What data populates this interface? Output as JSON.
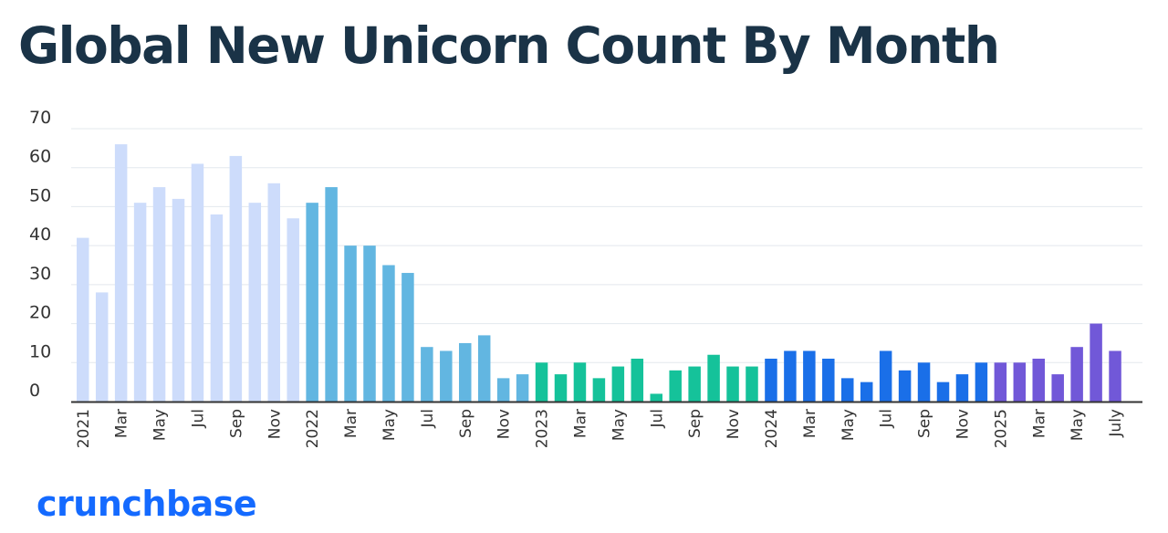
{
  "colors": {
    "title": "#1a3347",
    "logo": "#146aff",
    "grid": "#e3e8ee",
    "axis": "#333333",
    "series": [
      "#cddcfb",
      "#62b6e1",
      "#15c29a",
      "#1a6fe8",
      "#7158d8"
    ]
  },
  "logo_text": "crunchbase",
  "chart_data": {
    "type": "bar",
    "title": "Global New Unicorn Count By Month",
    "xlabel": "",
    "ylabel": "",
    "ylim": [
      0,
      70
    ],
    "y_ticks": [
      0,
      10,
      20,
      30,
      40,
      50,
      60,
      70
    ],
    "grid": true,
    "legend": "none",
    "categories": [
      "Jan 2021",
      "Feb 2021",
      "Mar 2021",
      "Apr 2021",
      "May 2021",
      "Jun 2021",
      "Jul 2021",
      "Aug 2021",
      "Sep 2021",
      "Oct 2021",
      "Nov 2021",
      "Dec 2021",
      "Jan 2022",
      "Feb 2022",
      "Mar 2022",
      "Apr 2022",
      "May 2022",
      "Jun 2022",
      "Jul 2022",
      "Aug 2022",
      "Sep 2022",
      "Oct 2022",
      "Nov 2022",
      "Dec 2022",
      "Jan 2023",
      "Feb 2023",
      "Mar 2023",
      "Apr 2023",
      "May 2023",
      "Jun 2023",
      "Jul 2023",
      "Aug 2023",
      "Sep 2023",
      "Oct 2023",
      "Nov 2023",
      "Dec 2023",
      "Jan 2024",
      "Feb 2024",
      "Mar 2024",
      "Apr 2024",
      "May 2024",
      "Jun 2024",
      "Jul 2024",
      "Aug 2024",
      "Sep 2024",
      "Oct 2024",
      "Nov 2024",
      "Dec 2024",
      "Jan 2025",
      "Feb 2025",
      "Mar 2025",
      "Apr 2025",
      "May 2025",
      "Jun 2025",
      "Jul 2025"
    ],
    "tick_labels": [
      "2021",
      "",
      "Mar",
      "",
      "May",
      "",
      "Jul",
      "",
      "Sep",
      "",
      "Nov",
      "",
      "2022",
      "",
      "Mar",
      "",
      "May",
      "",
      "Jul",
      "",
      "Sep",
      "",
      "Nov",
      "",
      "2023",
      "",
      "Mar",
      "",
      "May",
      "",
      "Jul",
      "",
      "Sep",
      "",
      "Nov",
      "",
      "2024",
      "",
      "Mar",
      "",
      "May",
      "",
      "Jul",
      "",
      "Sep",
      "",
      "Nov",
      "",
      "2025",
      "",
      "Mar",
      "",
      "May",
      "",
      "July"
    ],
    "values": [
      42,
      28,
      66,
      51,
      55,
      52,
      61,
      48,
      63,
      51,
      56,
      47,
      51,
      55,
      40,
      40,
      35,
      33,
      14,
      13,
      15,
      17,
      6,
      7,
      10,
      7,
      10,
      6,
      9,
      11,
      2,
      8,
      9,
      12,
      9,
      9,
      11,
      13,
      13,
      11,
      6,
      5,
      13,
      8,
      10,
      5,
      7,
      10,
      10,
      10,
      11,
      7,
      14,
      20,
      13
    ],
    "year_groups": [
      {
        "year": "2021",
        "color_index": 0,
        "count": 12
      },
      {
        "year": "2022",
        "color_index": 1,
        "count": 12
      },
      {
        "year": "2023",
        "color_index": 2,
        "count": 12
      },
      {
        "year": "2024",
        "color_index": 3,
        "count": 12
      },
      {
        "year": "2025",
        "color_index": 4,
        "count": 7
      }
    ]
  }
}
